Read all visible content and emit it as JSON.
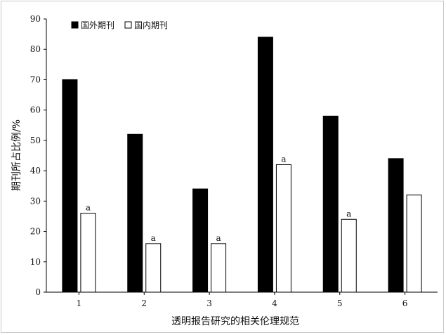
{
  "chart_data": {
    "type": "bar",
    "title": "",
    "xlabel": "透明报告研究的相关伦理规范",
    "ylabel": "期刊所占比例/%",
    "categories": [
      "1",
      "2",
      "3",
      "4",
      "5",
      "6"
    ],
    "ylim": [
      0,
      90
    ],
    "yticks": [
      0,
      10,
      20,
      30,
      40,
      50,
      60,
      70,
      80,
      90
    ],
    "grid": false,
    "legend_position": "top-left",
    "series": [
      {
        "name": "国外期刊",
        "values": [
          70,
          52,
          34,
          84,
          58,
          44
        ],
        "color": "#000000",
        "labels": [
          "",
          "",
          "",
          "",
          "",
          ""
        ]
      },
      {
        "name": "国内期刊",
        "values": [
          26,
          16,
          16,
          42,
          24,
          32
        ],
        "color": "#ffffff",
        "labels": [
          "a",
          "a",
          "a",
          "a",
          "a",
          ""
        ]
      }
    ]
  }
}
